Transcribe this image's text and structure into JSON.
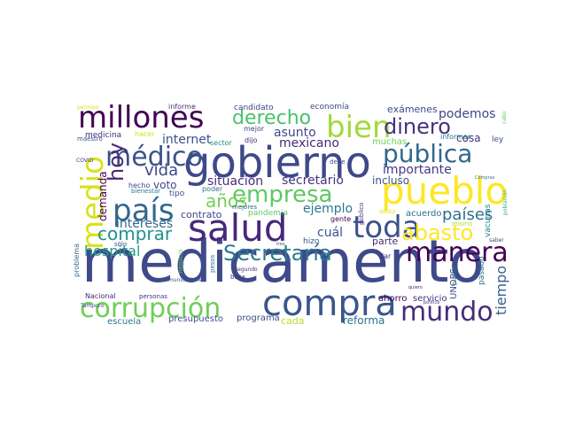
{
  "words": [
    {
      "text": "medicamento",
      "color": "#3e4a89",
      "size": 66
    },
    {
      "text": "gobierno",
      "color": "#3e4989",
      "size": 48
    },
    {
      "text": "pueblo",
      "color": "#fde725",
      "size": 42
    },
    {
      "text": "salud",
      "color": "#482878",
      "size": 42
    },
    {
      "text": "compra",
      "color": "#39568c",
      "size": 40
    },
    {
      "text": "millones",
      "color": "#440154",
      "size": 34
    },
    {
      "text": "país",
      "color": "#31688e",
      "size": 34
    },
    {
      "text": "bien",
      "color": "#a0da39",
      "size": 34
    },
    {
      "text": "toda",
      "color": "#3b528b",
      "size": 34
    },
    {
      "text": "medio",
      "color": "#d8e219",
      "size": 34
    },
    {
      "text": "corrupción",
      "color": "#6ece58",
      "size": 30
    },
    {
      "text": "mundo",
      "color": "#472d7b",
      "size": 30
    },
    {
      "text": "manera",
      "color": "#440154",
      "size": 30
    },
    {
      "text": "médico",
      "color": "#3b528b",
      "size": 30
    },
    {
      "text": "pública",
      "color": "#31688e",
      "size": 28
    },
    {
      "text": "empresa",
      "color": "#5ec962",
      "size": 26
    },
    {
      "text": "Secretaría",
      "color": "#2a788e",
      "size": 24
    },
    {
      "text": "abasto",
      "color": "#fde725",
      "size": 24
    },
    {
      "text": "dinero",
      "color": "#46327e",
      "size": 24
    },
    {
      "text": "derecho",
      "color": "#4ac16d",
      "size": 22
    },
    {
      "text": "comprar",
      "color": "#21918c",
      "size": 20
    },
    {
      "text": "hoy",
      "color": "#482878",
      "size": 24
    },
    {
      "text": "años",
      "color": "#73d056",
      "size": 20
    },
    {
      "text": "vida",
      "color": "#3e4989",
      "size": 18
    },
    {
      "text": "países",
      "color": "#2c728e",
      "size": 18
    },
    {
      "text": "hospital",
      "color": "#1f9e89",
      "size": 16
    },
    {
      "text": "tiempo",
      "color": "#35608d",
      "size": 16
    },
    {
      "text": "importante",
      "color": "#443983",
      "size": 14
    },
    {
      "text": "podemos",
      "color": "#414487",
      "size": 14
    },
    {
      "text": "internet",
      "color": "#3b528b",
      "size": 14
    },
    {
      "text": "situación",
      "color": "#472d7b",
      "size": 14
    },
    {
      "text": "secretario",
      "color": "#46327e",
      "size": 14
    },
    {
      "text": "asunto",
      "color": "#3e4a89",
      "size": 14
    },
    {
      "text": "mexicano",
      "color": "#482878",
      "size": 14
    },
    {
      "text": "intereses",
      "color": "#31688e",
      "size": 14
    },
    {
      "text": "cuál",
      "color": "#3b528b",
      "size": 14
    },
    {
      "text": "ejemplo",
      "color": "#2a788e",
      "size": 14
    },
    {
      "text": "demanda",
      "color": "#440154",
      "size": 12
    },
    {
      "text": "cosa",
      "color": "#46327e",
      "size": 12
    },
    {
      "text": "incluso",
      "color": "#3b528b",
      "size": 12
    },
    {
      "text": "contrato",
      "color": "#414487",
      "size": 11
    },
    {
      "text": "voto",
      "color": "#3e4989",
      "size": 12
    },
    {
      "text": "exámenes",
      "color": "#3e4989",
      "size": 11
    },
    {
      "text": "parte",
      "color": "#472d7b",
      "size": 11
    },
    {
      "text": "acuerdo",
      "color": "#2c728e",
      "size": 10
    },
    {
      "text": "reforma",
      "color": "#2c728e",
      "size": 12
    },
    {
      "text": "programa",
      "color": "#3e4a89",
      "size": 10
    },
    {
      "text": "presupuesto",
      "color": "#3b528b",
      "size": 10
    },
    {
      "text": "escuela",
      "color": "#2a788e",
      "size": 10
    },
    {
      "text": "cada",
      "color": "#b5de2b",
      "size": 11
    },
    {
      "text": "Nacional",
      "color": "#482878",
      "size": 8
    },
    {
      "text": "ahorro",
      "color": "#440154",
      "size": 10
    },
    {
      "text": "servicio",
      "color": "#472d7b",
      "size": 10
    },
    {
      "text": "UNOPS",
      "color": "#3e4989",
      "size": 10
    },
    {
      "text": "pasado",
      "color": "#2a788e",
      "size": 9
    },
    {
      "text": "vacunas",
      "color": "#26828e",
      "size": 9
    },
    {
      "text": "ley",
      "color": "#3b528b",
      "size": 9
    },
    {
      "text": "muchas",
      "color": "#6ece58",
      "size": 10
    },
    {
      "text": "informar",
      "color": "#2c728e",
      "size": 8
    },
    {
      "text": "economía",
      "color": "#3e4989",
      "size": 9
    },
    {
      "text": "candidato",
      "color": "#414487",
      "size": 9
    },
    {
      "text": "informe",
      "color": "#46327e",
      "size": 8
    },
    {
      "text": "medicina",
      "color": "#472d7b",
      "size": 9
    },
    {
      "text": "hacer",
      "color": "#d8e219",
      "size": 8
    },
    {
      "text": "maestro",
      "color": "#3b528b",
      "size": 7
    },
    {
      "text": "mejor",
      "color": "#414487",
      "size": 8
    },
    {
      "text": "dijo",
      "color": "#482878",
      "size": 8
    },
    {
      "text": "sector",
      "color": "#21918c",
      "size": 8
    },
    {
      "text": "tipo",
      "color": "#3b528b",
      "size": 9
    },
    {
      "text": "poder",
      "color": "#2c728e",
      "size": 8
    },
    {
      "text": "bienestar",
      "color": "#2a788e",
      "size": 7
    },
    {
      "text": "hecho",
      "color": "#3e4989",
      "size": 8
    },
    {
      "text": "pandemia",
      "color": "#5ec962",
      "size": 9
    },
    {
      "text": "gente",
      "color": "#440154",
      "size": 8
    },
    {
      "text": "mejores",
      "color": "#31688e",
      "size": 7
    },
    {
      "text": "hizo",
      "color": "#3b528b",
      "size": 9
    },
    {
      "text": "dar",
      "color": "#472d7b",
      "size": 8
    },
    {
      "text": "mismo",
      "color": "#b5de2b",
      "size": 7
    },
    {
      "text": "público",
      "color": "#472d7b",
      "size": 7
    },
    {
      "text": "debe",
      "color": "#3e4989",
      "size": 7
    },
    {
      "text": "puede",
      "color": "#2c728e",
      "size": 7
    },
    {
      "text": "sólo",
      "color": "#3b528b",
      "size": 7
    },
    {
      "text": "beca",
      "color": "#482878",
      "size": 7
    },
    {
      "text": "segundo",
      "color": "#46327e",
      "size": 6
    },
    {
      "text": "pesos",
      "color": "#2c728e",
      "size": 7
    },
    {
      "text": "negocio",
      "color": "#5ec962",
      "size": 7
    },
    {
      "text": "problema",
      "color": "#31688e",
      "size": 8
    },
    {
      "text": "personas",
      "color": "#46327e",
      "size": 7
    },
    {
      "text": "Tampoco",
      "color": "#3e4989",
      "size": 6
    },
    {
      "text": "COVID",
      "color": "#46327e",
      "size": 6
    },
    {
      "text": "población",
      "color": "#35b779",
      "size": 6
    },
    {
      "text": "saber",
      "color": "#3e4a89",
      "size": 6
    },
    {
      "text": "cabo",
      "color": "#5ec962",
      "size": 6
    },
    {
      "text": "permiso",
      "color": "#d8e219",
      "size": 6
    },
    {
      "text": "Comunicaciones",
      "color": "#3b528b",
      "size": 6
    },
    {
      "text": "doctor",
      "color": "#d8e219",
      "size": 6
    },
    {
      "text": "Compras",
      "color": "#2c728e",
      "size": 5
    },
    {
      "text": "quiero",
      "color": "#482878",
      "size": 5
    },
    {
      "text": "política",
      "color": "#443983",
      "size": 5
    },
    {
      "text": "tres",
      "color": "#3b528b",
      "size": 5
    }
  ]
}
